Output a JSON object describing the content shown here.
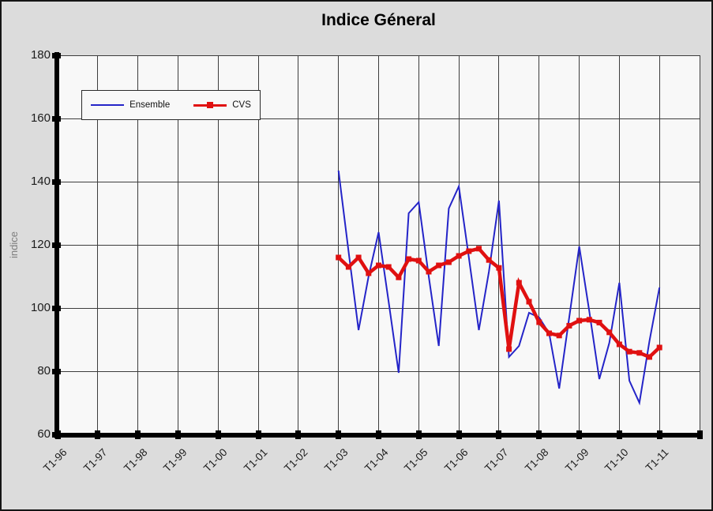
{
  "chart_data": {
    "type": "line",
    "title": "Indice Géneral",
    "ylabel": "indice",
    "ylim": [
      60,
      180
    ],
    "ytick_step": 20,
    "ytick_labels": [
      "180",
      "160",
      "140",
      "120",
      "100",
      "80",
      "60"
    ],
    "xtick_labels": [
      "T1-96",
      "T1-97",
      "T1-98",
      "T1-99",
      "T1-00",
      "T1-01",
      "T1-02",
      "T1-03",
      "T1-04",
      "T1-05",
      "T1-06",
      "T1-07",
      "T1-08",
      "T1-09",
      "T1-10",
      "T1-11"
    ],
    "x_total_quarters": 64,
    "series_start_quarter": 28,
    "series_start_label": "T1-03",
    "grid": true,
    "grid_color": "#3d3d3d",
    "legend_position": "top-left",
    "series": [
      {
        "name": "Ensemble",
        "color": "#2424C8",
        "line_width": 2,
        "marker": "none",
        "values": [
          143.5,
          118,
          93,
          110,
          124,
          102,
          79.5,
          130,
          133.5,
          110,
          88,
          131.5,
          138.5,
          116,
          93,
          111.5,
          134,
          84.5,
          88,
          98.5,
          97,
          92,
          74.5,
          97,
          119.5,
          99,
          77.5,
          89,
          108,
          77,
          70,
          89.5,
          106.5
        ]
      },
      {
        "name": "CVS",
        "color": "#E01010",
        "line_width": 4.5,
        "marker": "square",
        "values": [
          116,
          113,
          116,
          111,
          113.5,
          113,
          109.7,
          115.5,
          115,
          111.5,
          113.5,
          114.5,
          116.5,
          118,
          118.8,
          115.2,
          112.7,
          87,
          108,
          102,
          95.5,
          92,
          91.3,
          94.4,
          96,
          96.3,
          95.4,
          92.3,
          88.5,
          86.2,
          85.8,
          84.5,
          87.5
        ]
      }
    ]
  }
}
